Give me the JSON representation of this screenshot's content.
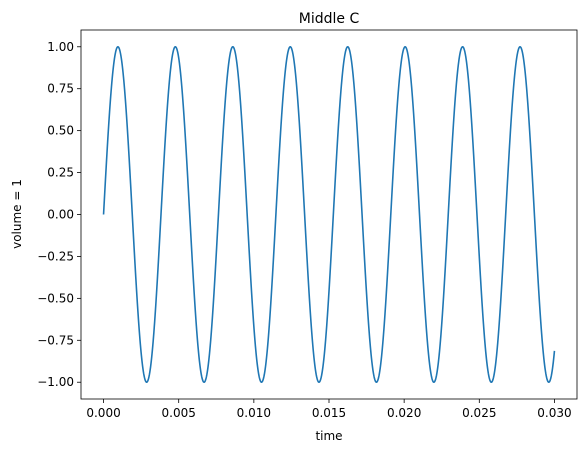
{
  "chart_data": {
    "type": "line",
    "title": "Middle C",
    "xlabel": "time",
    "ylabel": "volume = 1",
    "xlim": [
      -0.0015,
      0.0315
    ],
    "ylim": [
      -1.1,
      1.1
    ],
    "x_ticks": [
      0.0,
      0.005,
      0.01,
      0.015,
      0.02,
      0.025,
      0.03
    ],
    "x_tick_labels": [
      "0.000",
      "0.005",
      "0.010",
      "0.015",
      "0.020",
      "0.025",
      "0.030"
    ],
    "y_ticks": [
      -1.0,
      -0.75,
      -0.5,
      -0.25,
      0.0,
      0.25,
      0.5,
      0.75,
      1.0
    ],
    "y_tick_labels": [
      "−1.00",
      "−0.75",
      "−0.50",
      "−0.25",
      "0.00",
      "0.25",
      "0.50",
      "0.75",
      "1.00"
    ],
    "grid": false,
    "series": [
      {
        "color": "#1f77b4",
        "function": "sin(2*pi*f*t)",
        "amplitude": 1.0,
        "frequency_hz": 261.63,
        "x_start": 0.0,
        "x_end": 0.03
      }
    ]
  }
}
